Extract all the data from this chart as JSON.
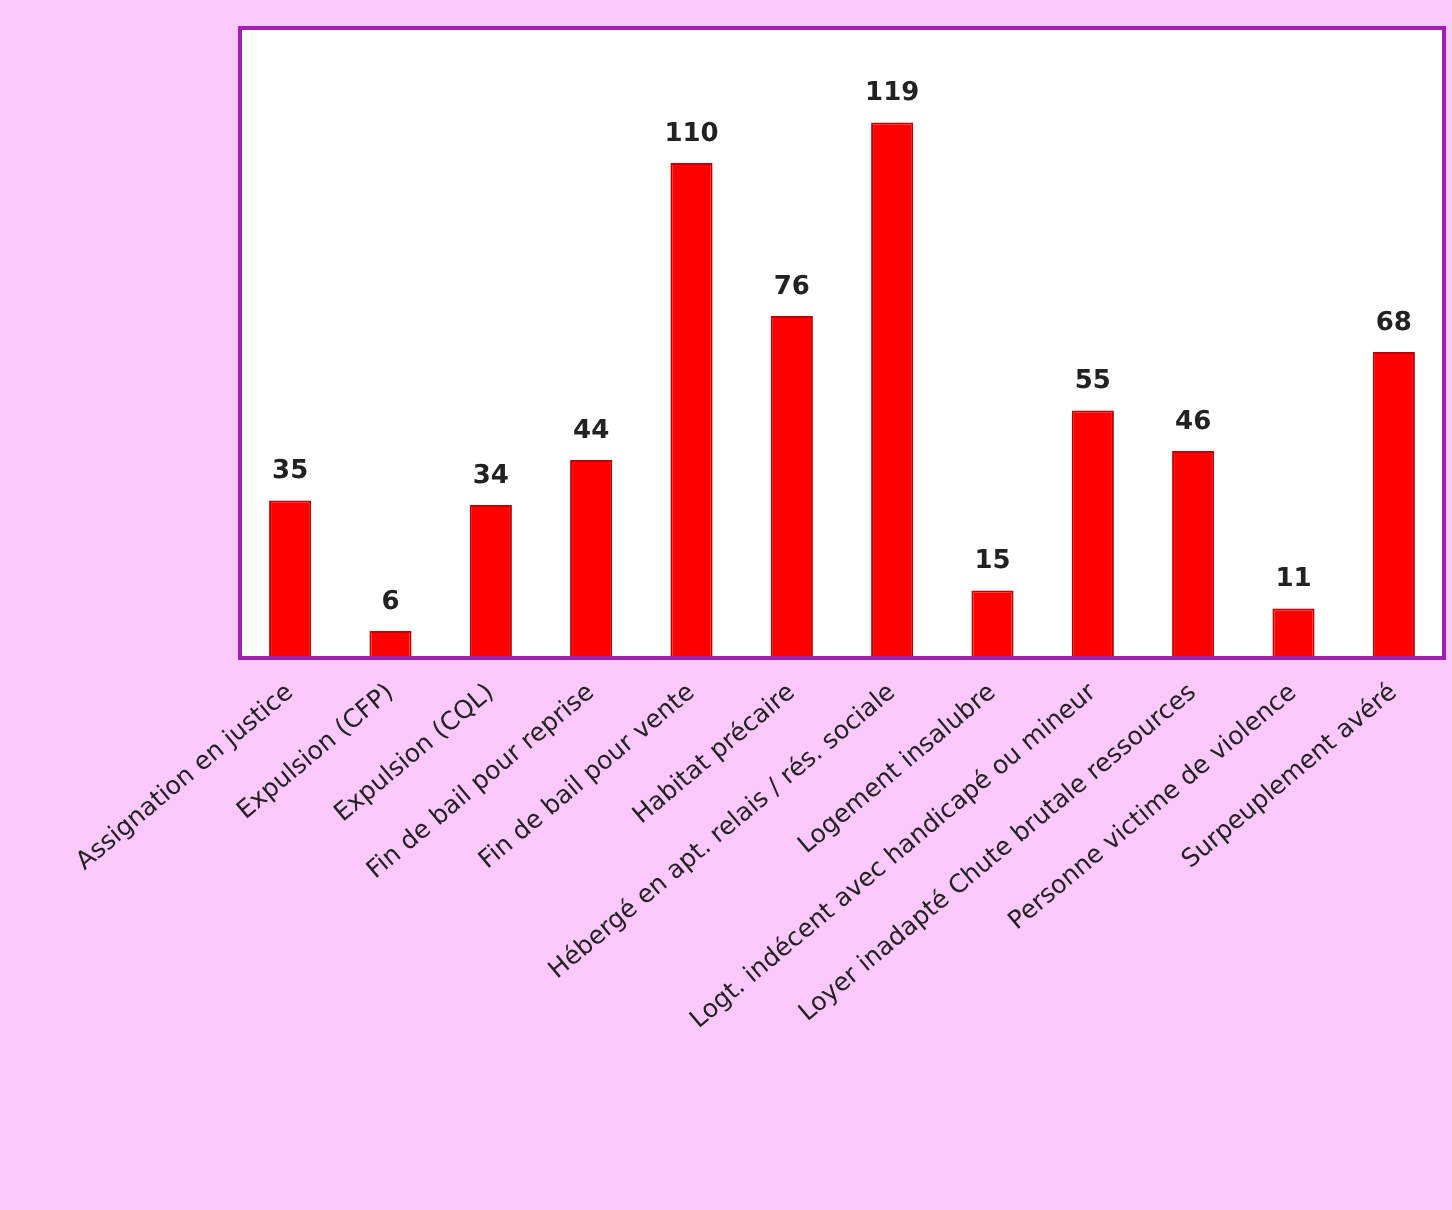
{
  "chart_data": {
    "type": "bar",
    "categories": [
      "Assignation en justice",
      "Expulsion (CFP)",
      "Expulsion (CQL)",
      "Fin de bail pour reprise",
      "Fin de bail pour vente",
      "Habitat précaire",
      "Hébergé en apt. relais / rés. sociale",
      "Logement insalubre",
      "Logt. indécent avec handicapé ou mineur",
      "Loyer inadapté Chute brutale ressources",
      "Personne victime de violence",
      "Surpeuplement avéré"
    ],
    "values": [
      35,
      6,
      34,
      44,
      110,
      76,
      119,
      15,
      55,
      46,
      11,
      68
    ],
    "color": "#ff0000",
    "ylim": [
      0,
      140
    ],
    "data_labels": true,
    "tick_labels": "x",
    "grid": false,
    "legend": false
  }
}
